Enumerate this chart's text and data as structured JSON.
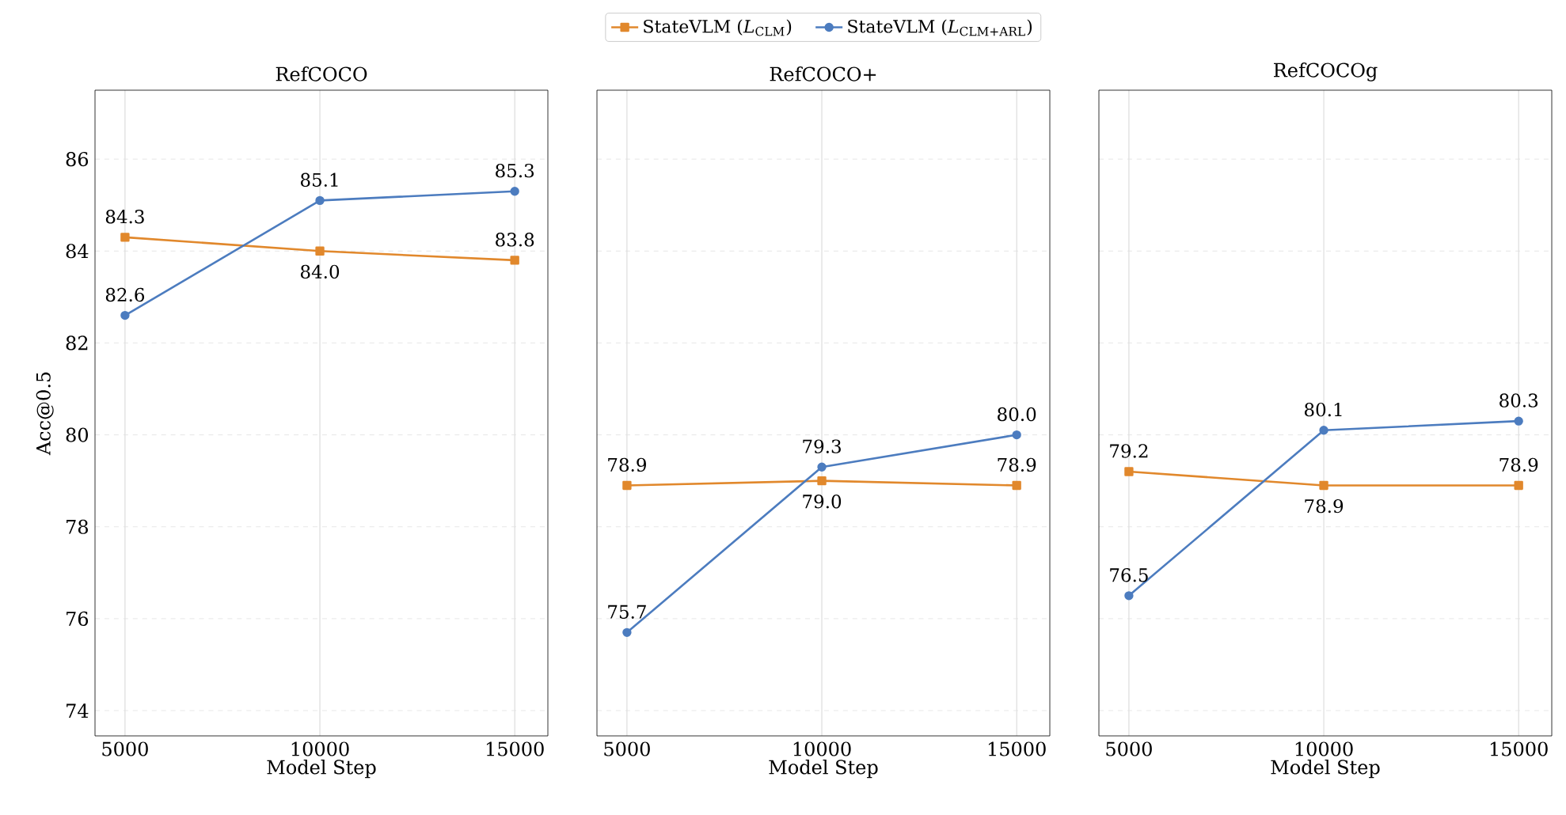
{
  "chart_data": [
    {
      "type": "line",
      "title": "RefCOCO",
      "xlabel": "Model Step",
      "ylabel": "Acc@0.5",
      "x": [
        5000,
        10000,
        15000
      ],
      "xlim": [
        4230,
        15850
      ],
      "ylim": [
        73.45,
        87.5
      ],
      "xticks": [
        5000,
        10000,
        15000
      ],
      "yticks": [
        74,
        76,
        78,
        80,
        82,
        84,
        86
      ],
      "grid": true,
      "legend": "top",
      "series": [
        {
          "name": "StateVLM (*L*$_{CLM}$)",
          "color": "#e1882c",
          "marker": "square",
          "values": [
            84.3,
            84.0,
            83.8
          ],
          "value_labels": [
            "84.3",
            "84.0",
            "83.8"
          ]
        },
        {
          "name": "StateVLM (*L*$_{CLM+ARL}$)",
          "color": "#4c7cbf",
          "marker": "circle",
          "values": [
            82.6,
            85.1,
            85.3
          ],
          "value_labels": [
            "82.6",
            "85.1",
            "85.3"
          ]
        }
      ]
    },
    {
      "type": "line",
      "title": "RefCOCO+",
      "xlabel": "Model Step",
      "x": [
        5000,
        10000,
        15000
      ],
      "xlim": [
        4230,
        15850
      ],
      "ylim": [
        73.45,
        87.5
      ],
      "xticks": [
        5000,
        10000,
        15000
      ],
      "yticks": [
        74,
        76,
        78,
        80,
        82,
        84,
        86
      ],
      "tick_labels": "x",
      "grid": true,
      "series": [
        {
          "color": "#e1882c",
          "marker": "square",
          "values": [
            78.9,
            79.0,
            78.9
          ],
          "value_labels": [
            "78.9",
            "79.0",
            "78.9"
          ]
        },
        {
          "color": "#4c7cbf",
          "marker": "circle",
          "values": [
            75.7,
            79.3,
            80.0
          ],
          "value_labels": [
            "75.7",
            "79.3",
            "80.0"
          ]
        }
      ]
    },
    {
      "type": "line",
      "title": "RefCOCOg",
      "xlabel": "Model Step",
      "x": [
        5000,
        10000,
        15000
      ],
      "xlim": [
        4230,
        15850
      ],
      "ylim": [
        73.45,
        87.5
      ],
      "xticks": [
        5000,
        10000,
        15000
      ],
      "yticks": [
        74,
        76,
        78,
        80,
        82,
        84,
        86
      ],
      "tick_labels": "x",
      "grid": true,
      "series": [
        {
          "color": "#e1882c",
          "marker": "square",
          "values": [
            79.2,
            78.9,
            78.9
          ],
          "value_labels": [
            "79.2",
            "78.9",
            "78.9"
          ]
        },
        {
          "color": "#4c7cbf",
          "marker": "circle",
          "values": [
            76.5,
            80.1,
            80.3
          ],
          "value_labels": [
            "76.5",
            "80.1",
            "80.3"
          ]
        }
      ]
    }
  ]
}
